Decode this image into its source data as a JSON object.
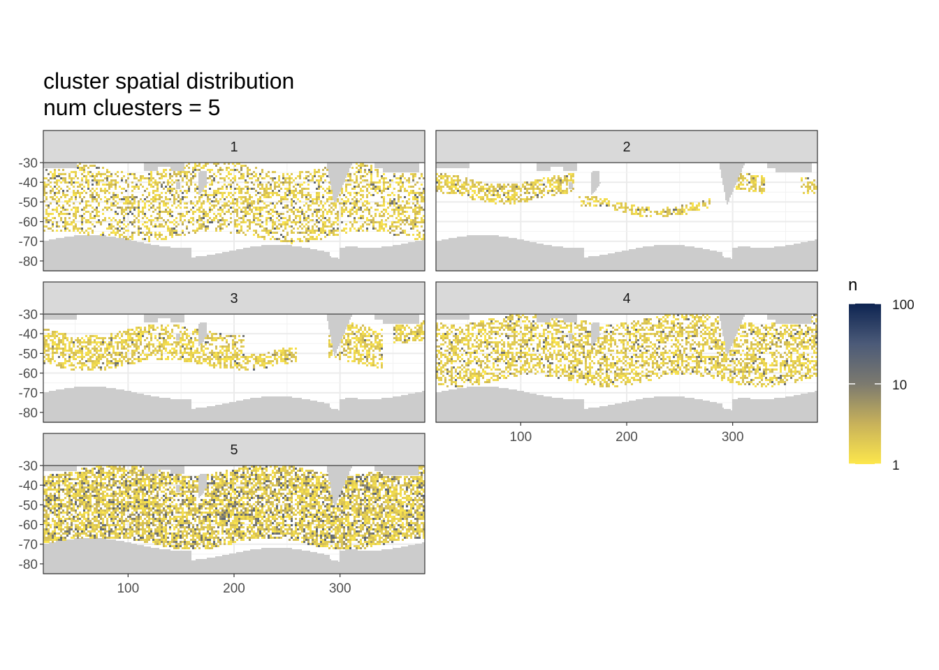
{
  "chart_data": {
    "type": "heatmap",
    "title": "cluster spatial distribution",
    "subtitle": "num cluesters = 5",
    "xlabel": "",
    "ylabel": "",
    "xlim": [
      20,
      380
    ],
    "ylim": [
      -85,
      -30
    ],
    "x_ticks": [
      "100",
      "200",
      "300"
    ],
    "y_ticks": [
      "-30",
      "-40",
      "-50",
      "-60",
      "-70",
      "-80"
    ],
    "x_tick_values": [
      100,
      200,
      300
    ],
    "y_tick_values": [
      -30,
      -40,
      -50,
      -60,
      -70,
      -80
    ],
    "grid": true,
    "land_color": "#cccccc",
    "legend": {
      "title": "n",
      "scale": "log10",
      "range": [
        1,
        100
      ],
      "labels": [
        "100",
        "10",
        "1"
      ],
      "label_values": [
        100,
        10,
        1
      ],
      "placement": "right",
      "colors": [
        "#fde74c",
        "#c8b25a",
        "#7c7a6f",
        "#4b5a78",
        "#0d2451"
      ]
    },
    "facets": [
      {
        "label": "1",
        "density": 0.42,
        "intensity": 0.35,
        "bands": [
          {
            "x0": 20,
            "x1": 380,
            "y0": -32,
            "y1": -68
          }
        ]
      },
      {
        "label": "2",
        "density": 0.55,
        "intensity": 0.15,
        "bands": [
          {
            "x0": 20,
            "x1": 150,
            "y0": -38,
            "y1": -48
          },
          {
            "x0": 155,
            "x1": 280,
            "y0": -50,
            "y1": -55
          },
          {
            "x0": 300,
            "x1": 330,
            "y0": -38,
            "y1": -47
          },
          {
            "x0": 365,
            "x1": 380,
            "y0": -35,
            "y1": -43
          }
        ]
      },
      {
        "label": "3",
        "density": 0.55,
        "intensity": 0.15,
        "bands": [
          {
            "x0": 20,
            "x1": 210,
            "y0": -38,
            "y1": -56
          },
          {
            "x0": 210,
            "x1": 260,
            "y0": -48,
            "y1": -56
          },
          {
            "x0": 290,
            "x1": 340,
            "y0": -35,
            "y1": -55
          },
          {
            "x0": 350,
            "x1": 380,
            "y0": -32,
            "y1": -42
          }
        ]
      },
      {
        "label": "4",
        "density": 0.5,
        "intensity": 0.25,
        "bands": [
          {
            "x0": 20,
            "x1": 380,
            "y0": -32,
            "y1": -64
          }
        ]
      },
      {
        "label": "5",
        "density": 0.7,
        "intensity": 0.55,
        "bands": [
          {
            "x0": 20,
            "x1": 380,
            "y0": -32,
            "y1": -70
          }
        ]
      }
    ]
  }
}
